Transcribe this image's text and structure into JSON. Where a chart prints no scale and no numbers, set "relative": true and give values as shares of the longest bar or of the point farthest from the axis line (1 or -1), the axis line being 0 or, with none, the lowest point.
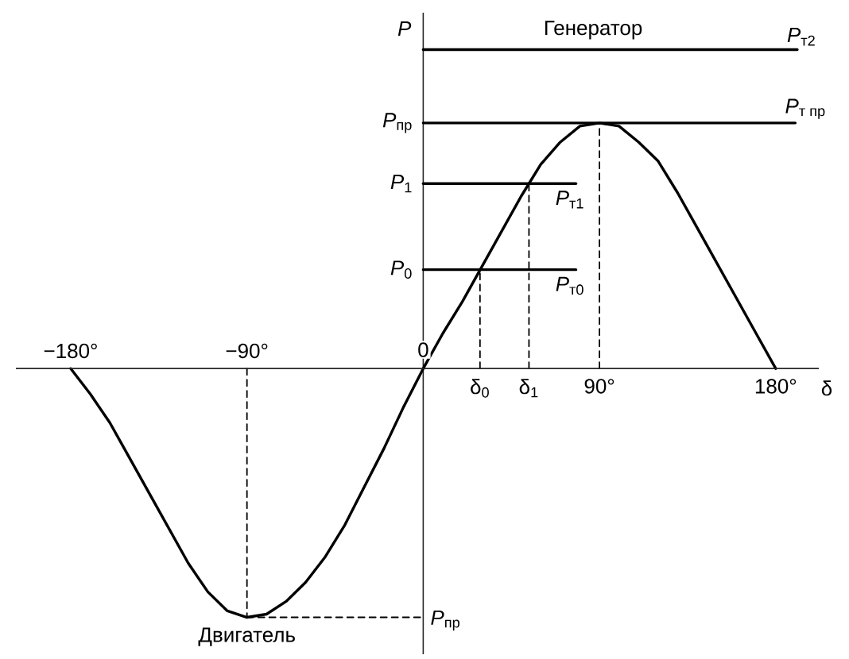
{
  "chart_data": {
    "type": "line",
    "relative": true,
    "xlabel": "δ",
    "ylabel": "P",
    "xlim": [
      -208,
      202
    ],
    "xticks": [
      {
        "value": 90,
        "label": "90°"
      },
      {
        "value": 180,
        "label": "180°"
      }
    ],
    "x2lim": [
      -208,
      202
    ],
    "x2ticks": [
      {
        "value": -180,
        "label": "−180°"
      },
      {
        "value": -90,
        "label": "−90°"
      },
      0
    ],
    "series": [
      {
        "color": "#000000",
        "x": [
          -180,
          -170,
          -160,
          -150,
          -140,
          -130,
          -120,
          -110,
          -100,
          -90,
          -80,
          -70,
          -60,
          -50,
          -40,
          -30,
          -20,
          -10,
          0,
          10,
          20,
          30,
          40,
          50,
          60,
          70,
          80,
          90,
          100,
          110,
          120,
          130,
          140,
          150,
          160,
          170,
          180
        ],
        "values": [
          0,
          -0.08,
          -0.17,
          -0.28,
          -0.39,
          -0.5,
          -0.61,
          -0.7,
          -0.76,
          -0.78,
          -0.77,
          -0.73,
          -0.67,
          -0.59,
          -0.49,
          -0.37,
          -0.25,
          -0.12,
          0,
          0.11,
          0.21,
          0.32,
          0.43,
          0.54,
          0.64,
          0.71,
          0.76,
          0.77,
          0.76,
          0.71,
          0.65,
          0.55,
          0.44,
          0.33,
          0.22,
          0.11,
          0
        ]
      },
      {
        "name": "\\textit{P}_{\\text{т2}}",
        "color": "#000000",
        "x": [
          0,
          191
        ],
        "values": [
          1,
          1
        ]
      },
      {
        "name": "\\textit{P}_{\\text{т пр}}",
        "color": "#000000",
        "x": [
          0,
          190
        ],
        "values": [
          0.77,
          0.77
        ]
      },
      {
        "name": "\\textit{P}_{\\text{т1}}",
        "color": "#000000",
        "x": [
          0,
          78
        ],
        "values": [
          0.58,
          0.58
        ]
      },
      {
        "name": "\\textit{P}_{\\text{т0}}",
        "color": "#000000",
        "x": [
          0,
          78
        ],
        "values": [
          0.31,
          0.31
        ]
      },
      {
        "color": "#000000",
        "line_style": "dashed",
        "x": [
          29,
          29
        ],
        "values": [
          0,
          0.31
        ]
      },
      {
        "color": "#000000",
        "line_style": "dashed",
        "x": [
          54,
          54
        ],
        "values": [
          0,
          0.58
        ]
      },
      {
        "color": "#000000",
        "line_style": "dashed",
        "x": [
          90,
          90
        ],
        "values": [
          0,
          0.77
        ]
      },
      {
        "color": "#000000",
        "line_style": "dashed",
        "x": [
          -90,
          -90
        ],
        "values": [
          0,
          -0.78
        ]
      },
      {
        "color": "#000000",
        "line_style": "dashed",
        "x": [
          -90,
          0
        ],
        "values": [
          -0.78,
          -0.78
        ]
      }
    ],
    "annotations": [
      {
        "text": "*P*$_{пр}$",
        "x": 0,
        "y": 0.77
      },
      {
        "text": "*P*$_{1}$",
        "x": 0,
        "y": 0.58
      },
      {
        "text": "*P*$_{0}$",
        "x": 0,
        "y": 0.31
      },
      {
        "text": "*P*$_{пр}$",
        "x": 0,
        "y": -0.78
      },
      {
        "text": "δ$_{0}$",
        "x": 29,
        "y": 0
      },
      {
        "text": "δ$_{1}$",
        "x": 54,
        "y": 0
      },
      {
        "text": "Генератор",
        "x": 90,
        "y": 1
      },
      {
        "text": "Двигатель",
        "x": -90,
        "y": -0.78
      }
    ]
  }
}
